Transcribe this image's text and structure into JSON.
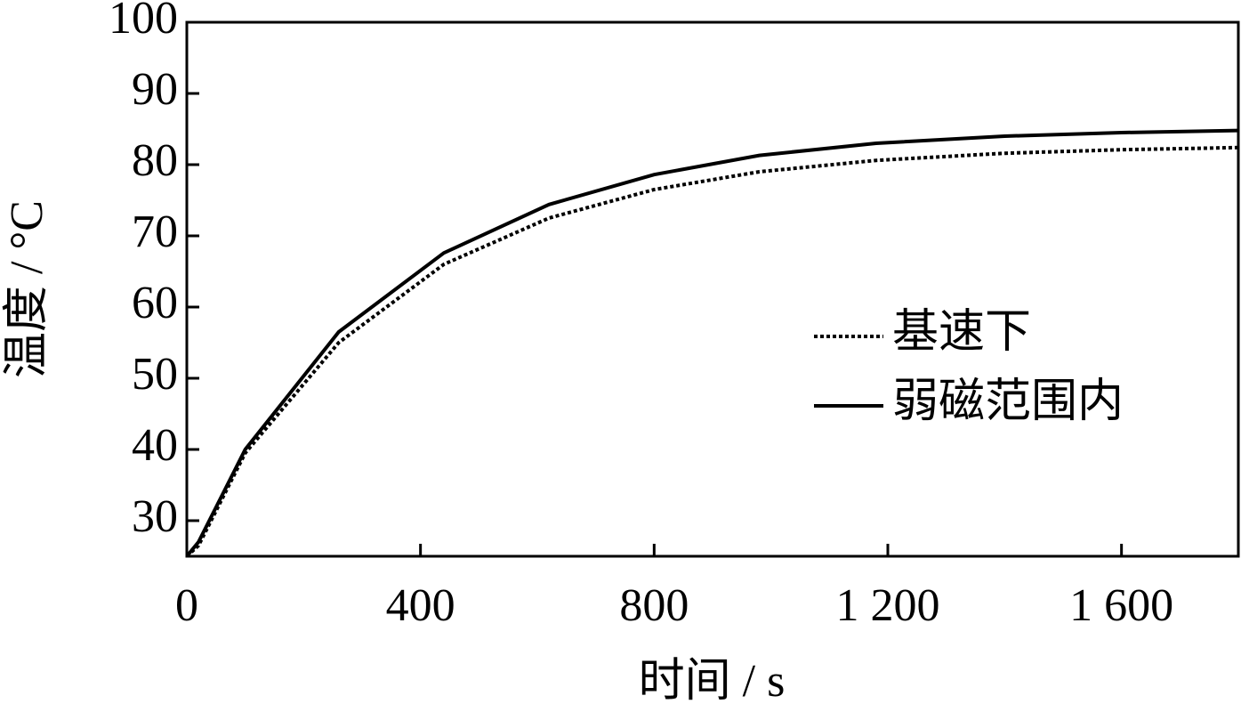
{
  "chart_data": {
    "type": "line",
    "x_label": "时间 / s",
    "y_label": "温度 / °C",
    "x": [
      0,
      20,
      100,
      260,
      440,
      620,
      800,
      980,
      1180,
      1400,
      1600,
      1800
    ],
    "series": [
      {
        "name": "基速下",
        "color": "#000000",
        "line_style": "dotted",
        "values": [
          25,
          26.5,
          39.5,
          55,
          66,
          72.5,
          76.5,
          79,
          80.6,
          81.6,
          82.1,
          82.4
        ]
      },
      {
        "name": "弱磁范围内",
        "color": "#000000",
        "line_style": "solid",
        "values": [
          25,
          27,
          40,
          56.5,
          67.6,
          74.4,
          78.6,
          81.3,
          83,
          84,
          84.5,
          84.8
        ]
      }
    ],
    "xlim": [
      0,
      1800
    ],
    "ylim": [
      25,
      100
    ],
    "xticks": [
      0,
      400,
      800,
      {
        "value": 1200,
        "label": "1 200"
      },
      {
        "value": 1600,
        "label": "1 600"
      }
    ],
    "yticks": [
      30,
      40,
      50,
      60,
      70,
      80,
      90,
      100
    ],
    "grid": false,
    "legend_position": "right"
  }
}
